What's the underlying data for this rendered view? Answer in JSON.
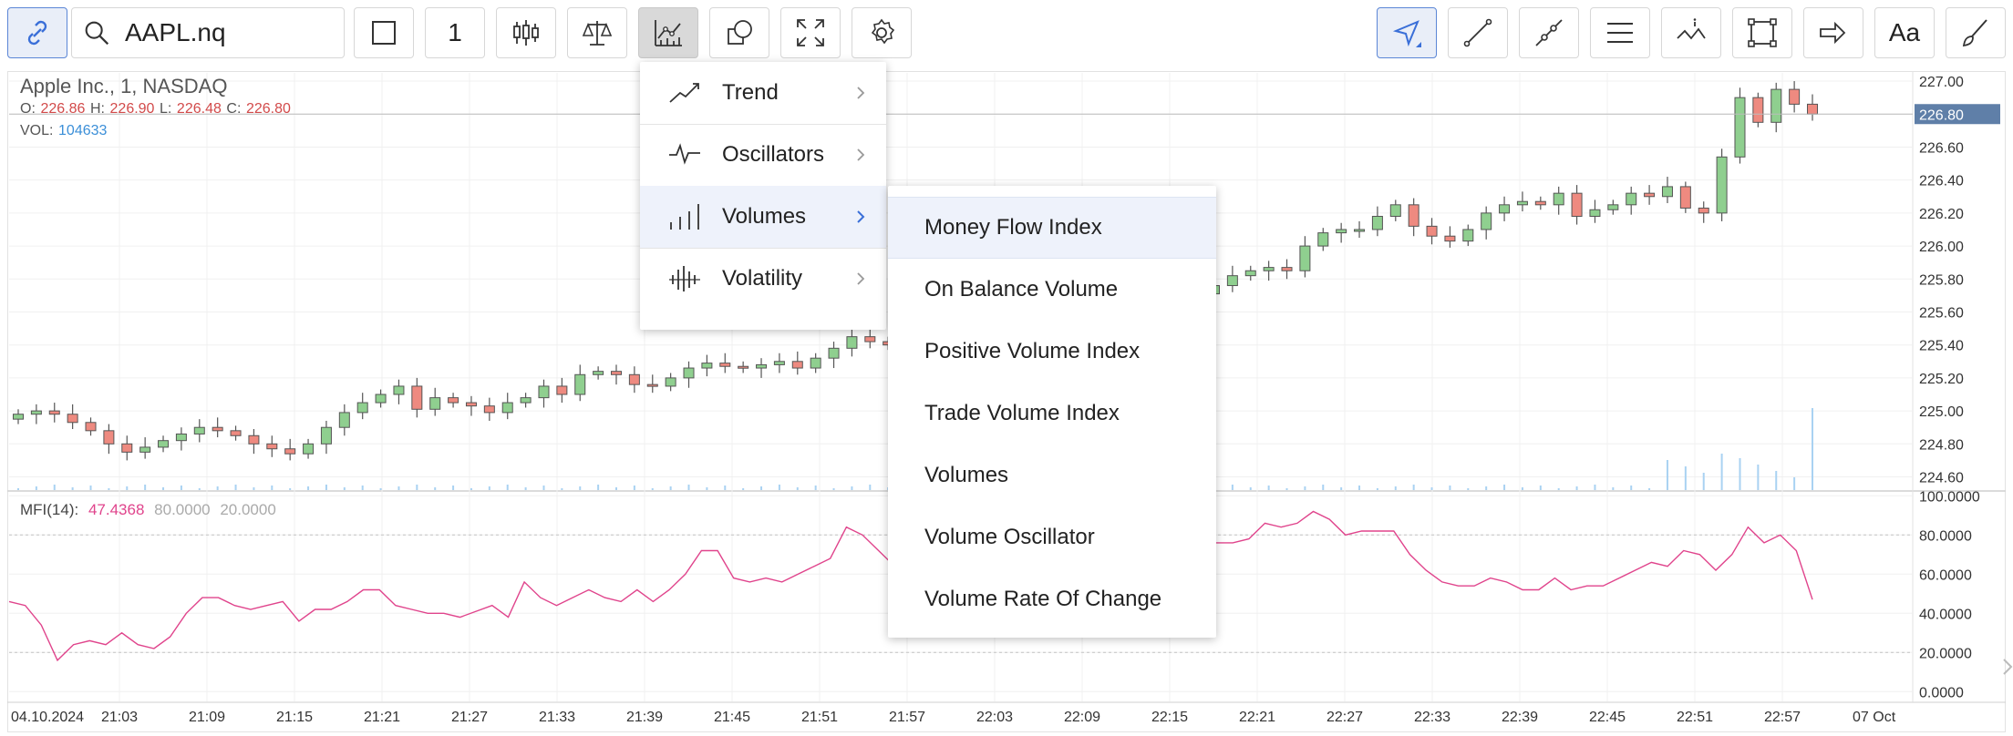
{
  "toolbar": {
    "symbol_value": "AAPL.nq",
    "interval_label": "1",
    "font_button_label": "Aa",
    "icons": [
      "link-icon",
      "search-icon",
      "square-icon",
      "candles-icon",
      "scales-icon",
      "indicators-icon",
      "shapes-icon",
      "fullscreen-icon",
      "gear-icon",
      "cursor-icon",
      "line-icon",
      "segment-icon",
      "lines-icon",
      "pattern-icon",
      "rect-icon",
      "arrow-icon",
      "text-icon",
      "brush-icon"
    ],
    "accent_color": "#3a6fd8"
  },
  "legend": {
    "title": "Apple Inc.,  1,  NASDAQ",
    "o_label": "O:",
    "o_value": "226.86",
    "h_label": "H:",
    "h_value": "226.90",
    "l_label": "L:",
    "l_value": "226.48",
    "c_label": "C:",
    "c_value": "226.80",
    "vol_label": "VOL:",
    "vol_value": "104633"
  },
  "mfi_legend": {
    "label": "MFI(14):",
    "value": "47.4368",
    "level_high": "80.0000",
    "level_low": "20.0000",
    "color": "#e0448c"
  },
  "indicator_menu": {
    "items": [
      {
        "label": "Trend",
        "icon": "trend-icon"
      },
      {
        "label": "Oscillators",
        "icon": "oscillator-icon"
      },
      {
        "label": "Volumes",
        "icon": "volume-bars-icon",
        "selected": true
      },
      {
        "label": "Volatility",
        "icon": "volatility-icon"
      }
    ]
  },
  "volumes_submenu": {
    "items": [
      {
        "label": "Money Flow Index",
        "highlighted": true
      },
      {
        "label": "On Balance Volume"
      },
      {
        "label": "Positive Volume Index"
      },
      {
        "label": "Trade Volume Index"
      },
      {
        "label": "Volumes"
      },
      {
        "label": "Volume Oscillator"
      },
      {
        "label": "Volume Rate Of Change"
      }
    ]
  },
  "chart_data": [
    {
      "type": "candlestick",
      "title": "Apple Inc.,  1,  NASDAQ",
      "x_ticks": [
        "04.10.2024",
        "21:03",
        "21:09",
        "21:15",
        "21:21",
        "21:27",
        "21:33",
        "21:39",
        "21:45",
        "21:51",
        "21:57",
        "22:03",
        "22:09",
        "22:15",
        "22:21",
        "22:27",
        "22:33",
        "22:39",
        "22:45",
        "22:51",
        "22:57",
        "07 Oct"
      ],
      "y_ticks": [
        "227.00",
        "226.80",
        "226.60",
        "226.40",
        "226.20",
        "226.00",
        "225.80",
        "225.60",
        "225.40",
        "225.20",
        "225.00",
        "224.80",
        "224.60"
      ],
      "ylim": [
        224.52,
        227.05
      ],
      "last_price_label": "226.80",
      "up_color": "#8fcf8f",
      "down_color": "#ee8a80",
      "closes": [
        224.98,
        225.0,
        224.98,
        224.93,
        224.88,
        224.8,
        224.75,
        224.78,
        224.82,
        224.86,
        224.9,
        224.88,
        224.85,
        224.8,
        224.77,
        224.74,
        224.8,
        224.9,
        224.99,
        225.05,
        225.1,
        225.15,
        225.01,
        225.08,
        225.05,
        225.03,
        224.99,
        225.05,
        225.08,
        225.15,
        225.1,
        225.22,
        225.24,
        225.22,
        225.16,
        225.15,
        225.2,
        225.26,
        225.29,
        225.27,
        225.26,
        225.28,
        225.3,
        225.26,
        225.32,
        225.38,
        225.45,
        225.42,
        225.4,
        225.38,
        225.4,
        225.42,
        225.45,
        225.48,
        225.47,
        225.46,
        225.49,
        225.48,
        225.5,
        225.47,
        225.55,
        225.52,
        225.48,
        225.55,
        225.63,
        225.71,
        225.76,
        225.82,
        225.85,
        225.87,
        225.85,
        226.0,
        226.08,
        226.1,
        226.1,
        226.18,
        226.25,
        226.12,
        226.06,
        226.03,
        226.1,
        226.2,
        226.25,
        226.27,
        226.25,
        226.32,
        226.18,
        226.22,
        226.25,
        226.32,
        226.3,
        226.36,
        226.23,
        226.2,
        226.54,
        226.9,
        226.75,
        226.95,
        226.86,
        226.8
      ],
      "volumes_visible": "small bars along the bottom of the price pane, larger near the end"
    },
    {
      "type": "line",
      "name": "MFI(14)",
      "y_ticks": [
        "100.0000",
        "80.0000",
        "60.0000",
        "40.0000",
        "20.0000",
        "0.0000"
      ],
      "ylim": [
        -5,
        102
      ],
      "levels": [
        80,
        20
      ],
      "values": [
        46,
        44,
        34,
        16,
        24,
        26,
        24,
        30,
        24,
        22,
        28,
        40,
        48,
        48,
        44,
        42,
        44,
        46,
        36,
        42,
        42,
        46,
        52,
        52,
        44,
        42,
        40,
        40,
        38,
        41,
        44,
        38,
        56,
        48,
        44,
        48,
        52,
        48,
        46,
        52,
        46,
        52,
        60,
        72,
        72,
        58,
        56,
        58,
        56,
        60,
        64,
        68,
        84,
        80,
        72,
        64,
        70,
        60,
        58,
        62,
        66,
        62,
        58,
        56,
        60,
        64,
        68,
        64,
        60,
        62,
        66,
        70,
        66,
        64,
        76,
        76,
        76,
        78,
        86,
        84,
        86,
        92,
        88,
        80,
        82,
        82,
        82,
        70,
        62,
        56,
        54,
        54,
        58,
        56,
        52,
        52,
        58,
        52,
        54,
        54,
        58,
        62,
        66,
        64,
        72,
        70,
        62,
        70,
        84,
        76,
        80,
        72,
        47
      ]
    }
  ]
}
